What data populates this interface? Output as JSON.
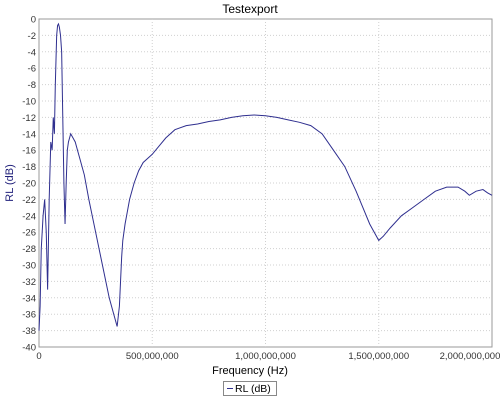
{
  "chart_data": {
    "type": "line",
    "title": "Testexport",
    "xlabel": "Frequency (Hz)",
    "ylabel": "RL (dB)",
    "xlim": [
      0,
      2000000000
    ],
    "ylim": [
      -40,
      0
    ],
    "x_ticks": [
      0,
      500000000,
      1000000000,
      1500000000,
      2000000000
    ],
    "x_tick_labels": [
      "0",
      "500,000,000",
      "1,000,000,000",
      "1,500,000,000",
      "2,000,000,000"
    ],
    "y_ticks": [
      0,
      -2,
      -4,
      -6,
      -8,
      -10,
      -12,
      -14,
      -16,
      -18,
      -20,
      -22,
      -24,
      -26,
      -28,
      -30,
      -32,
      -34,
      -36,
      -38,
      -40
    ],
    "grid": true,
    "legend": "bottom-center",
    "series": [
      {
        "name": "RL (dB)",
        "color": "#2f2f8f",
        "x": [
          0,
          5000000,
          10000000,
          18000000,
          25000000,
          32000000,
          38000000,
          45000000,
          52000000,
          58000000,
          63000000,
          68000000,
          72000000,
          75000000,
          78000000,
          82000000,
          86000000,
          90000000,
          95000000,
          100000000,
          105000000,
          110000000,
          115000000,
          120000000,
          125000000,
          130000000,
          135000000,
          140000000,
          150000000,
          160000000,
          170000000,
          180000000,
          200000000,
          220000000,
          250000000,
          280000000,
          310000000,
          330000000,
          345000000,
          355000000,
          360000000,
          365000000,
          370000000,
          380000000,
          400000000,
          420000000,
          440000000,
          460000000,
          480000000,
          500000000,
          530000000,
          560000000,
          600000000,
          650000000,
          700000000,
          750000000,
          800000000,
          850000000,
          900000000,
          950000000,
          1000000000,
          1050000000,
          1100000000,
          1150000000,
          1200000000,
          1250000000,
          1300000000,
          1350000000,
          1400000000,
          1430000000,
          1460000000,
          1480000000,
          1500000000,
          1520000000,
          1550000000,
          1600000000,
          1650000000,
          1700000000,
          1750000000,
          1800000000,
          1850000000,
          1880000000,
          1900000000,
          1930000000,
          1960000000,
          1980000000,
          2000000000
        ],
        "y": [
          -38,
          -35,
          -28,
          -24,
          -22,
          -26,
          -33,
          -22,
          -15,
          -16,
          -12,
          -14,
          -8,
          -5,
          -2,
          -0.8,
          -0.6,
          -1,
          -2,
          -4,
          -12,
          -20,
          -25,
          -20,
          -16,
          -15,
          -14.5,
          -14,
          -14.5,
          -15,
          -16,
          -17,
          -19,
          -22,
          -26,
          -30,
          -34,
          -36,
          -37.5,
          -35,
          -32,
          -29,
          -27,
          -25,
          -22,
          -20,
          -18.5,
          -17.5,
          -17,
          -16.5,
          -15.5,
          -14.5,
          -13.5,
          -13,
          -12.8,
          -12.5,
          -12.3,
          -12,
          -11.8,
          -11.7,
          -11.8,
          -12,
          -12.3,
          -12.6,
          -13,
          -14,
          -16,
          -18,
          -21,
          -23,
          -25,
          -26,
          -27,
          -26.5,
          -25.5,
          -24,
          -23,
          -22,
          -21,
          -20.5,
          -20.5,
          -21,
          -21.5,
          -21,
          -20.8,
          -21.2,
          -21.5
        ]
      }
    ]
  }
}
